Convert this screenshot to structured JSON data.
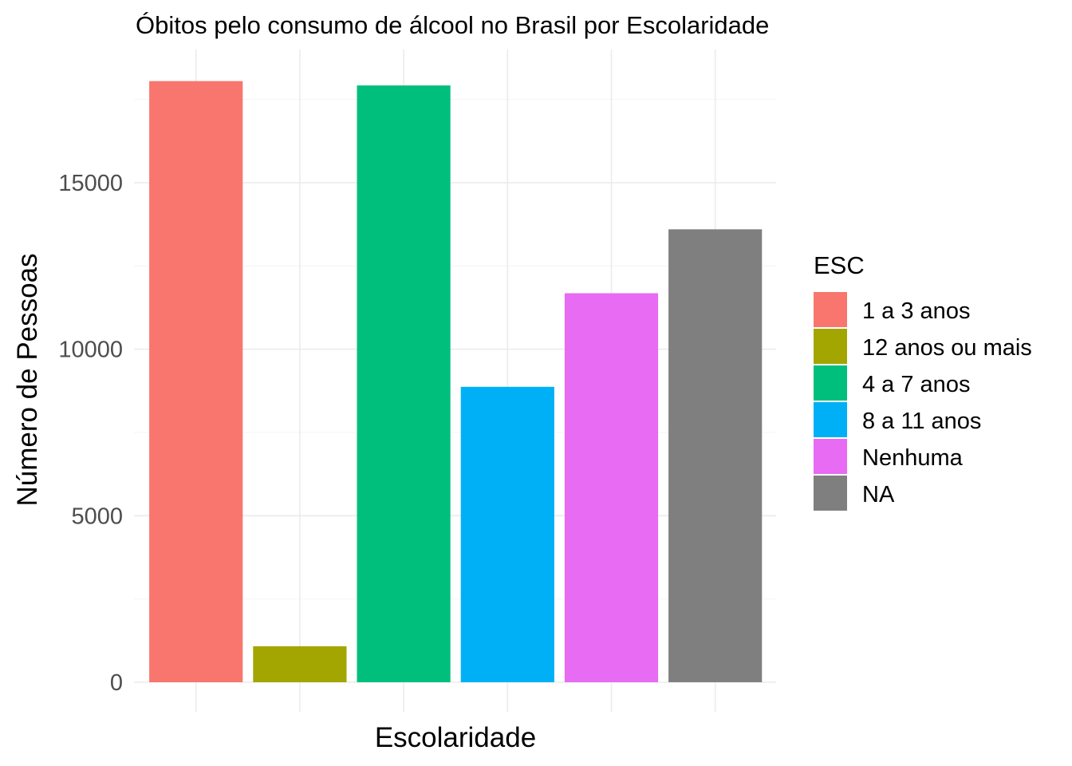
{
  "chart_data": {
    "type": "bar",
    "title": "Óbitos pelo consumo de álcool no Brasil por Escolaridade",
    "xlabel": "Escolaridade",
    "ylabel": "Número de Pessoas",
    "categories": [
      "1 a 3 anos",
      "12 anos ou mais",
      "4 a 7 anos",
      "8 a 11 anos",
      "Nenhuma",
      "NA"
    ],
    "values": [
      18050,
      1080,
      17920,
      8870,
      11680,
      13600
    ],
    "colors": [
      "#F8766D",
      "#A3A500",
      "#00BF7D",
      "#00B0F6",
      "#E76BF3",
      "#7F7F7F"
    ],
    "ylim": [
      0,
      19000
    ],
    "yticks": [
      0,
      5000,
      10000,
      15000
    ],
    "yticks_labels": [
      "0",
      "5000",
      "10000",
      "15000"
    ],
    "grid": true,
    "x_tick_labels_shown": false,
    "legend": {
      "title": "ESC",
      "position": "right",
      "entries": [
        "1 a 3 anos",
        "12 anos ou mais",
        "4 a 7 anos",
        "8 a 11 anos",
        "Nenhuma",
        "NA"
      ]
    }
  }
}
